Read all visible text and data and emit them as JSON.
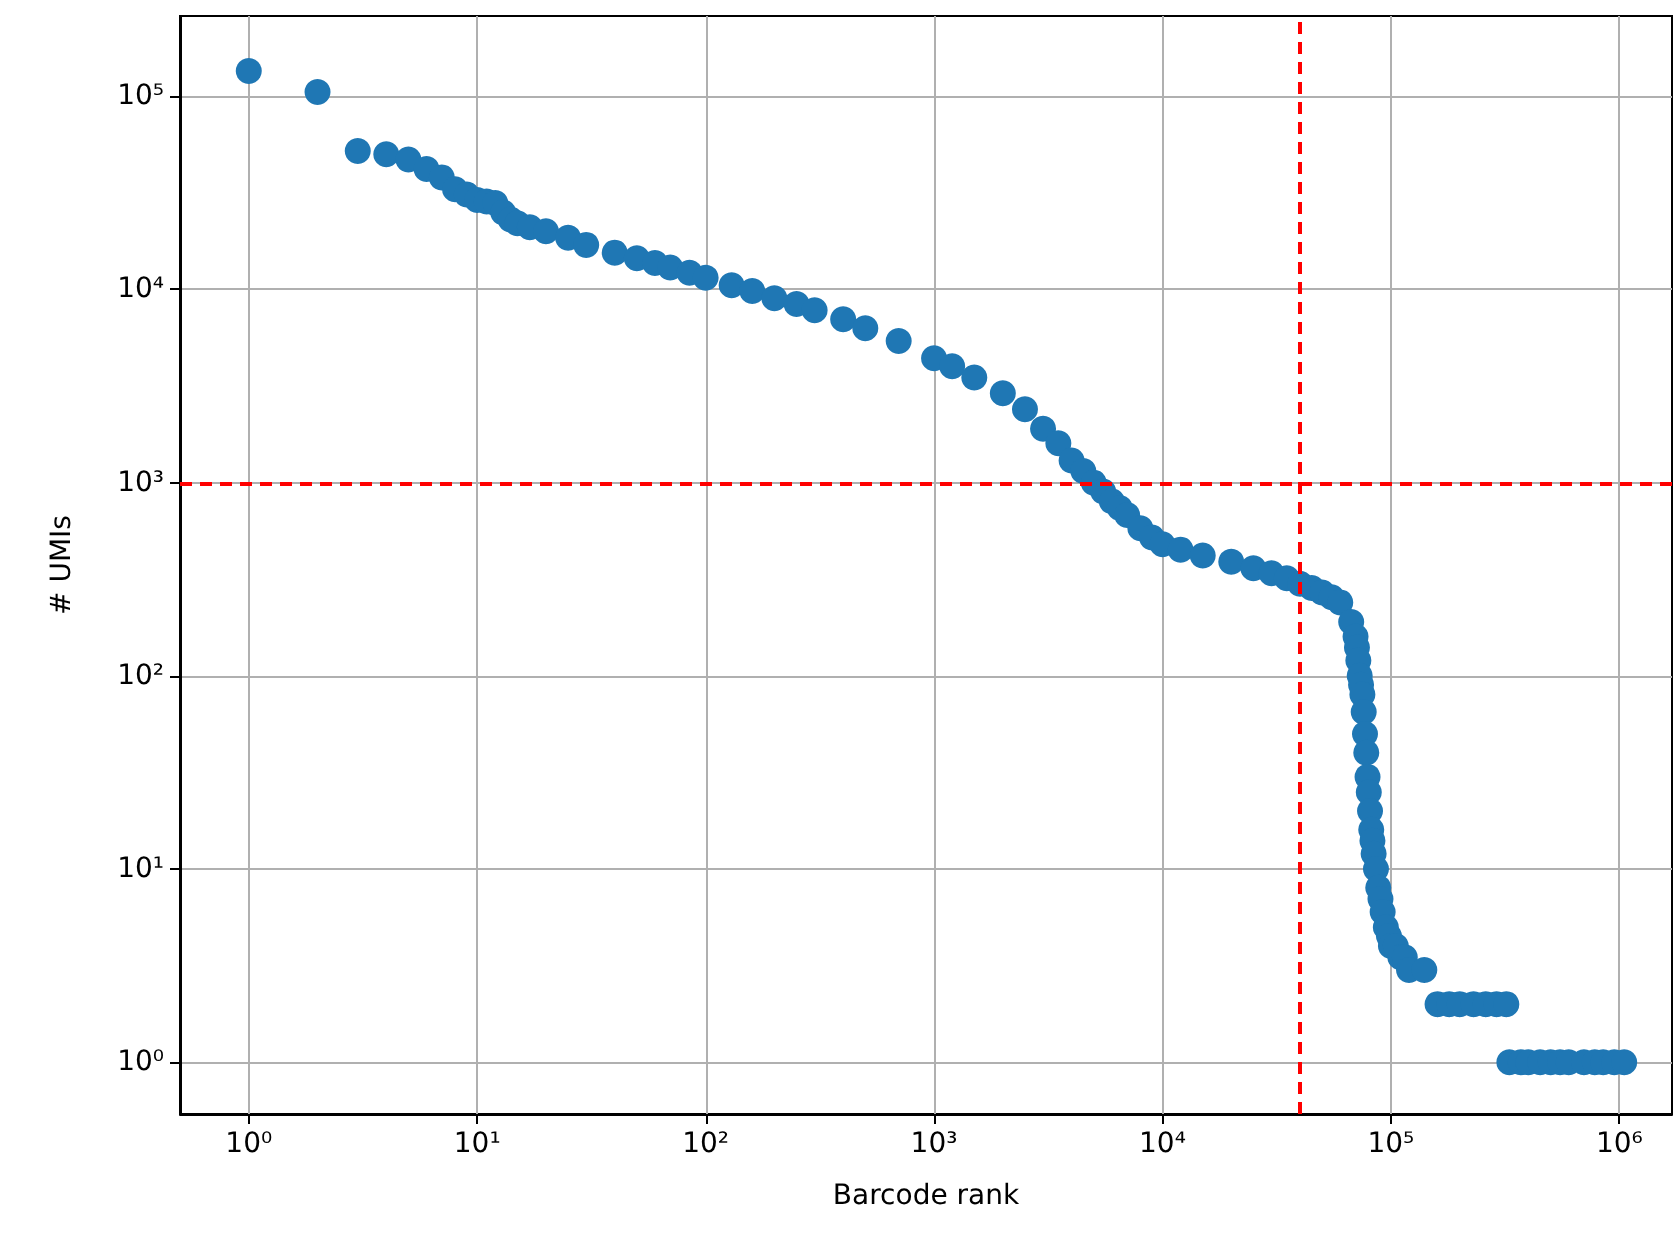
{
  "chart_data": {
    "type": "scatter",
    "xlabel": "Barcode rank",
    "ylabel": "# UMIs",
    "log": "xy",
    "grid": true,
    "marker": "circle",
    "xlim": [
      0.5,
      1700000
    ],
    "ylim": [
      0.54,
      260000
    ],
    "xticks": [
      {
        "value": 1,
        "label": "10⁰"
      },
      {
        "value": 10,
        "label": "10¹"
      },
      {
        "value": 100,
        "label": "10²"
      },
      {
        "value": 1000,
        "label": "10³"
      },
      {
        "value": 10000,
        "label": "10⁴"
      },
      {
        "value": 100000,
        "label": "10⁵"
      },
      {
        "value": 1000000,
        "label": "10⁶"
      }
    ],
    "yticks": [
      {
        "value": 1,
        "label": "10⁰"
      },
      {
        "value": 10,
        "label": "10¹"
      },
      {
        "value": 100,
        "label": "10²"
      },
      {
        "value": 1000,
        "label": "10³"
      },
      {
        "value": 10000,
        "label": "10⁴"
      },
      {
        "value": 100000,
        "label": "10⁵"
      }
    ],
    "series": [
      {
        "color": "#1f77b4",
        "x": [
          1,
          2,
          3,
          4,
          5,
          6,
          7,
          8,
          9,
          10,
          11,
          12,
          13,
          14,
          15,
          17,
          20,
          25,
          30,
          40,
          50,
          60,
          70,
          85,
          100,
          130,
          160,
          200,
          250,
          300,
          400,
          500,
          700,
          1000,
          1200,
          1500,
          2000,
          2500,
          3000,
          3500,
          4000,
          4500,
          5000,
          5500,
          6000,
          6500,
          7000,
          8000,
          9000,
          10000,
          12000,
          15000,
          20000,
          25000,
          30000,
          35000,
          40000,
          45000,
          50000,
          55000,
          60000,
          67000,
          70000,
          71000,
          72000,
          73000,
          74000,
          75000,
          76000,
          77000,
          78000,
          79000,
          80000,
          81000,
          82000,
          83000,
          84000,
          86000,
          88000,
          90000,
          92000,
          95000,
          98000,
          100000,
          105000,
          110000,
          115000,
          120000,
          140000,
          160000,
          180000,
          200000,
          230000,
          260000,
          290000,
          320000,
          330000,
          370000,
          400000,
          450000,
          500000,
          550000,
          600000,
          700000,
          780000,
          850000,
          950000,
          1050000
        ],
        "values": [
          135000,
          105000,
          52000,
          50000,
          47000,
          42000,
          38000,
          33000,
          31000,
          29000,
          28500,
          28000,
          25000,
          23000,
          22000,
          21000,
          20000,
          18500,
          17000,
          15500,
          14500,
          13700,
          13000,
          12200,
          11500,
          10500,
          9800,
          9000,
          8400,
          7800,
          7000,
          6300,
          5400,
          4400,
          4000,
          3500,
          2900,
          2400,
          1900,
          1600,
          1300,
          1150,
          1000,
          900,
          800,
          740,
          680,
          580,
          520,
          480,
          450,
          420,
          390,
          360,
          340,
          320,
          300,
          285,
          270,
          255,
          240,
          190,
          160,
          140,
          120,
          100,
          90,
          80,
          65,
          50,
          40,
          30,
          25,
          20,
          16,
          14,
          12,
          10,
          8,
          7,
          6,
          5,
          4.5,
          4,
          4,
          3.5,
          3.5,
          3,
          3,
          2,
          2,
          2,
          2,
          2,
          2,
          2,
          1,
          1,
          1,
          1,
          1,
          1,
          1,
          1,
          1,
          1,
          1,
          1
        ]
      }
    ],
    "ref_lines": [
      {
        "axis": "y",
        "value": 1000,
        "color": "#ff0000",
        "line_style": "dashed"
      },
      {
        "axis": "x",
        "value": 40000,
        "color": "#ff0000",
        "line_style": "dashed"
      }
    ]
  }
}
